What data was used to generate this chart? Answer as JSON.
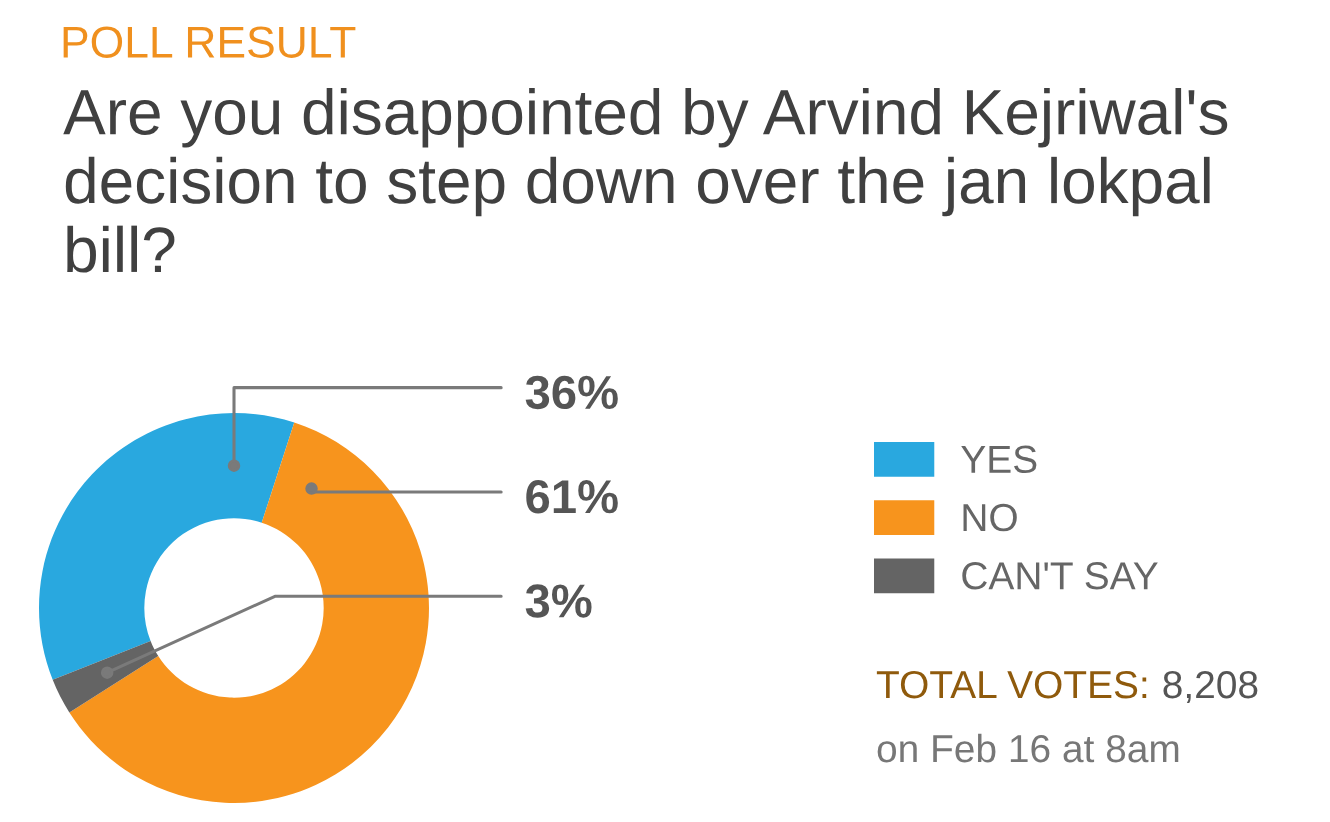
{
  "chart_data": {
    "type": "donut",
    "title": "Are you disappointed by Arvind Kejriwal's decision to step down over the jan lokpal bill?",
    "categories": [
      "YES",
      "NO",
      "CAN'T SAY"
    ],
    "values": [
      36,
      61,
      3
    ],
    "colors": [
      "#29a8df",
      "#f7941d",
      "#646464"
    ],
    "value_labels": [
      "36%",
      "61%",
      "3%"
    ],
    "legend": "right",
    "annotations": [
      "POLL RESULT",
      "TOTAL VOTES:",
      "8,208",
      "on Feb 16 at 8am"
    ]
  }
}
